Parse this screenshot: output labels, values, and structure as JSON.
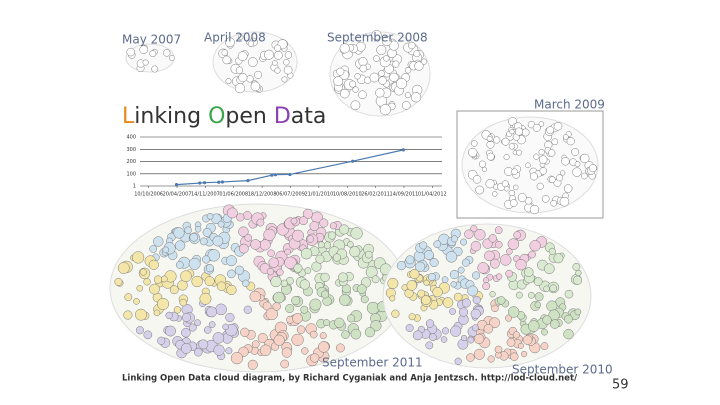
{
  "slide": {
    "labels": [
      "May 2007",
      "April 2008",
      "September 2008",
      "March 2009",
      "September 2011",
      "September 2010"
    ],
    "title": "Linking Open Data",
    "title_initial_colors": [
      "#e8891c",
      "#3aa54a",
      "#8a3fb5"
    ],
    "caption": "Linking Open Data cloud diagram, by Richard Cyganiak and Anja Jentzsch. http://lod-cloud.net/",
    "page_number": "59"
  },
  "chart_data": {
    "type": "line",
    "series": [
      {
        "color": "#4a7ab0",
        "x": [
          0.98,
          1.8,
          1.97,
          2.47,
          2.6,
          3.5,
          4.34,
          4.47,
          4.98,
          7.19,
          8.98
        ],
        "values": [
          12,
          25,
          28,
          32,
          34,
          45,
          89,
          93,
          95,
          203,
          295
        ]
      }
    ],
    "xlim": [
      -0.2,
      10.2
    ],
    "xticks": [
      {
        "value": 0,
        "label": "10/10/2006"
      },
      {
        "value": 1,
        "label": "20/04/2007"
      },
      {
        "value": 2,
        "label": "14/11/2007"
      },
      {
        "value": 3,
        "label": "01/06/2008"
      },
      {
        "value": 4,
        "label": "18/12/2008"
      },
      {
        "value": 5,
        "label": "06/07/2009"
      },
      {
        "value": 6,
        "label": "21/01/2010"
      },
      {
        "value": 7,
        "label": "10/08/2010"
      },
      {
        "value": 8,
        "label": "26/02/2011"
      },
      {
        "value": 9,
        "label": "14/09/2011"
      },
      {
        "value": 10,
        "label": "01/04/2012"
      }
    ],
    "ylim": [
      1,
      400
    ],
    "yticks": [
      1,
      100,
      200,
      300,
      400
    ],
    "grid": true
  }
}
